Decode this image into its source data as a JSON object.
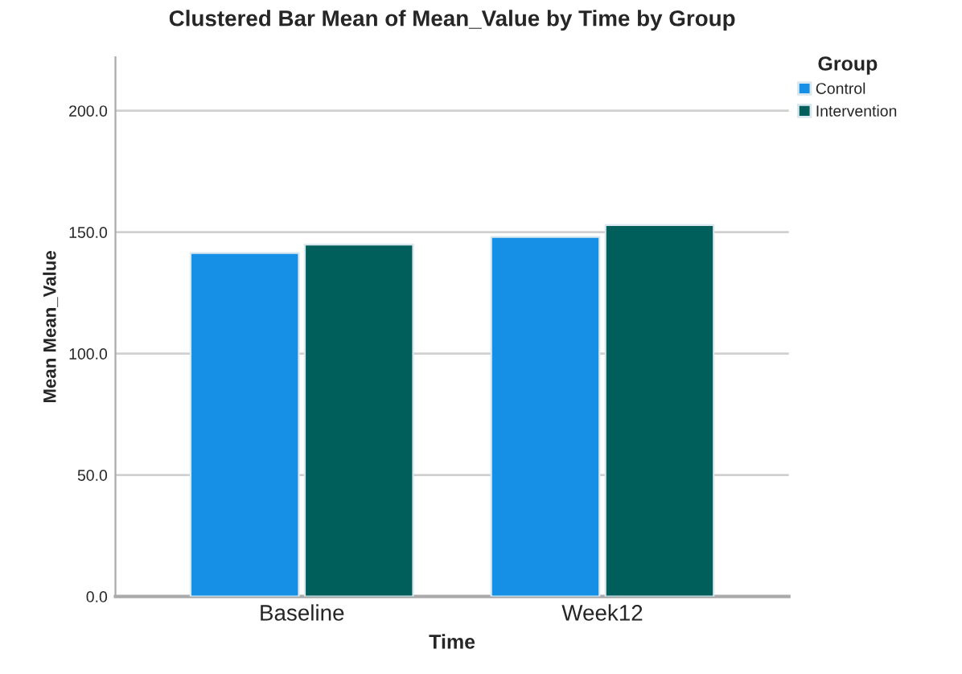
{
  "chart_data": {
    "type": "bar",
    "title": "Clustered Bar Mean of Mean_Value by Time by Group",
    "xlabel": "Time",
    "ylabel": "Mean Mean_Value",
    "legend_title": "Group",
    "categories": [
      "Baseline",
      "Week12"
    ],
    "series": [
      {
        "name": "Control",
        "color": "#1590e6",
        "values": [
          141.4,
          148.0
        ]
      },
      {
        "name": "Intervention",
        "color": "#015f5b",
        "values": [
          144.9,
          152.9
        ]
      }
    ],
    "ylim": [
      0,
      222
    ],
    "yticks": [
      {
        "value": 0,
        "label": "0.0"
      },
      {
        "value": 50,
        "label": "50.0"
      },
      {
        "value": 100,
        "label": "100.0"
      },
      {
        "value": 150,
        "label": "150.0"
      },
      {
        "value": 200,
        "label": "200.0"
      }
    ],
    "grid": "y",
    "legend": "top right"
  }
}
